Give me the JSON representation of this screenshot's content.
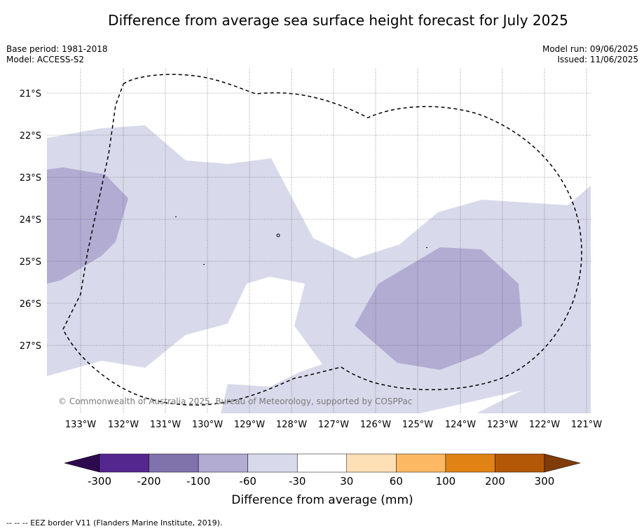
{
  "title": "Difference from average sea surface height forecast for July 2025",
  "base_period": "Base period: 1981-2018",
  "model": "Model: ACCESS-S2",
  "model_run": "Model run: 09/06/2025",
  "issued": "Issued: 11/06/2025",
  "copyright": "© Commonwealth of Australia 2025, Bureau of Meteorology, supported by COSPPac",
  "footer_note": "--  --  -- EEZ border V11 (Flanders Marine Institute, 2019).",
  "lat_labels": [
    "21°S",
    "22°S",
    "23°S",
    "24°S",
    "25°S",
    "26°S",
    "27°S"
  ],
  "lon_labels": [
    "133°W",
    "132°W",
    "131°W",
    "130°W",
    "129°W",
    "128°W",
    "127°W",
    "126°W",
    "125°W",
    "124°W",
    "123°W",
    "122°W",
    "121°W"
  ],
  "colorbar": {
    "label": "Difference from average (mm)",
    "ticks": [
      "-300",
      "-200",
      "-100",
      "-60",
      "-30",
      "30",
      "60",
      "100",
      "200",
      "300"
    ],
    "colors": [
      "#2d0a4e",
      "#54278f",
      "#8073ac",
      "#b2abd2",
      "#d8daeb",
      "#ffffff",
      "#fee0b6",
      "#fdb863",
      "#e08214",
      "#b35806",
      "#7f3b08"
    ]
  },
  "map_layers": {
    "shade_-60_to_-30": "#d8daeb",
    "shade_-100_to_-60": "#b2abd2",
    "eez_border": "dashed"
  }
}
